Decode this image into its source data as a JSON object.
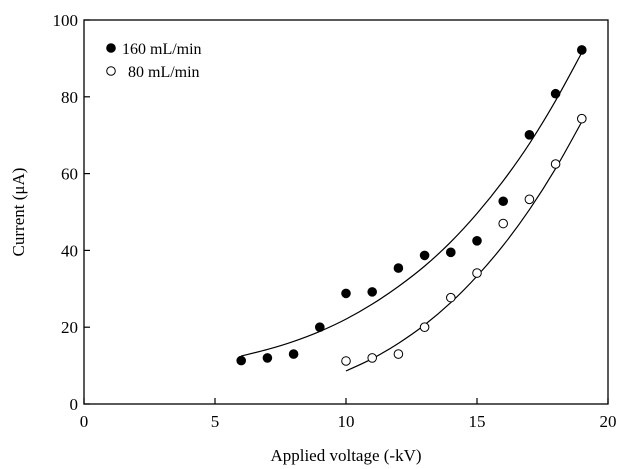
{
  "chart_data": {
    "type": "scatter",
    "title": "",
    "xlabel": "Applied voltage (-kV)",
    "ylabel": "Current (μA)",
    "xlim": [
      0,
      20
    ],
    "ylim": [
      0,
      100
    ],
    "xticks": [
      0,
      5,
      10,
      15,
      20
    ],
    "yticks": [
      0,
      20,
      40,
      60,
      80,
      100
    ],
    "grid": false,
    "legend_position": "top-left",
    "series": [
      {
        "name": "160 mL/min",
        "marker": "filled-circle",
        "color": "#000000",
        "x": [
          6,
          7,
          8,
          9,
          10,
          11,
          12,
          13,
          14,
          15,
          16,
          17,
          18,
          19
        ],
        "y": [
          11.3,
          12.0,
          13.0,
          20.0,
          28.8,
          29.2,
          35.4,
          38.7,
          39.5,
          42.5,
          52.8,
          70.1,
          80.8,
          92.2
        ],
        "fit_curve": {
          "x": [
            6,
            7,
            8,
            9,
            10,
            11,
            12,
            13,
            14,
            15,
            16,
            17,
            18,
            19
          ],
          "y": [
            12.5,
            14.2,
            16.3,
            18.9,
            22.1,
            26.0,
            30.6,
            35.9,
            42.2,
            49.6,
            58.1,
            67.8,
            79.0,
            91.5
          ]
        }
      },
      {
        "name": "80 mL/min",
        "marker": "open-circle",
        "color": "#000000",
        "x": [
          10,
          11,
          12,
          13,
          14,
          15,
          16,
          17,
          18,
          19
        ],
        "y": [
          11.2,
          12.0,
          13.0,
          20.0,
          27.7,
          34.1,
          47.0,
          53.3,
          62.5,
          74.3
        ],
        "fit_curve": {
          "x": [
            10,
            11,
            12,
            13,
            14,
            15,
            16,
            17,
            18,
            19
          ],
          "y": [
            8.6,
            11.8,
            15.8,
            20.6,
            26.4,
            33.3,
            41.3,
            50.6,
            61.3,
            73.5
          ]
        }
      }
    ]
  }
}
